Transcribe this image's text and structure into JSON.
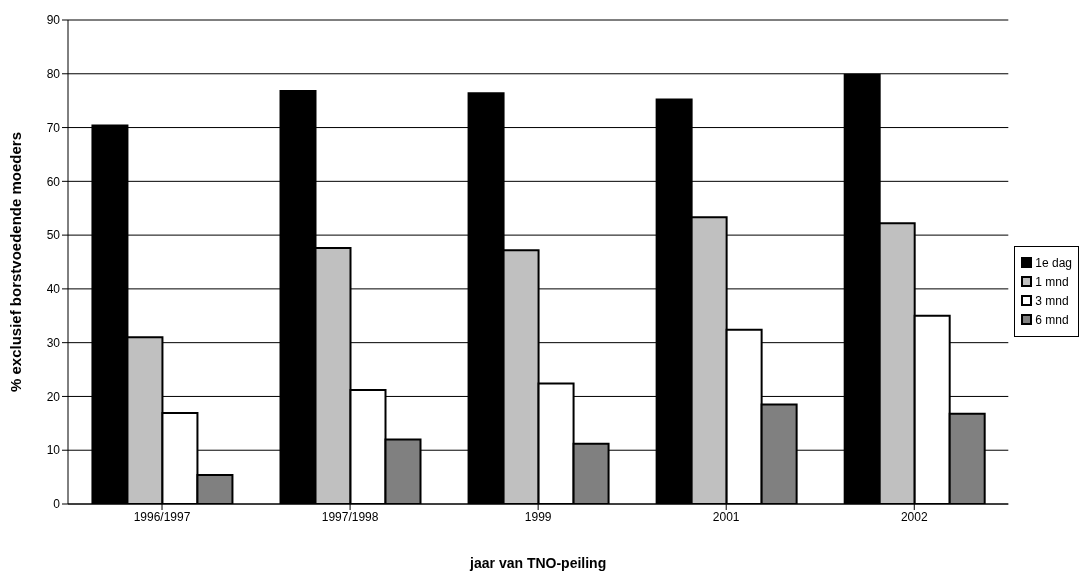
{
  "chart_data": {
    "type": "bar",
    "xlabel": "jaar van TNO-peiling",
    "ylabel": "% exclusief borstvoedende moeders",
    "categories": [
      "1996/1997",
      "1997/1998",
      "1999",
      "2001",
      "2002"
    ],
    "series": [
      {
        "name": "1e dag",
        "color": "#000000",
        "values": [
          70.4,
          76.8,
          76.4,
          75.2,
          79.8
        ]
      },
      {
        "name": "1 mnd",
        "color": "#c0c0c0",
        "values": [
          31,
          47.6,
          47.2,
          53.3,
          52.2
        ]
      },
      {
        "name": "3 mnd",
        "color": "#ffffff",
        "values": [
          16.9,
          21.2,
          22.4,
          32.4,
          35
        ]
      },
      {
        "name": "6 mnd",
        "color": "#808080",
        "values": [
          5.4,
          12,
          11.2,
          18.5,
          16.8
        ]
      }
    ],
    "ylim": [
      0,
      90
    ],
    "yticks": [
      0,
      10,
      20,
      30,
      40,
      50,
      60,
      70,
      80,
      90
    ],
    "grid": "y",
    "legend": "right"
  }
}
